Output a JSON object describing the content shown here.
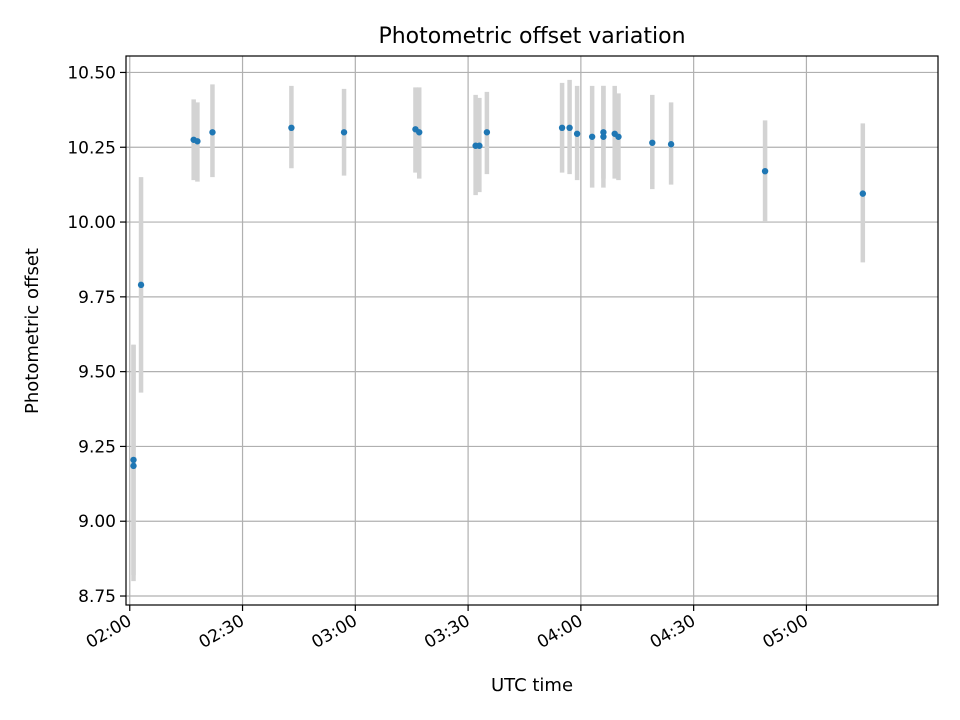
{
  "chart_data": {
    "type": "scatter",
    "title": "Photometric offset variation",
    "xlabel": "UTC time",
    "ylabel": "Photometric offset",
    "x_tick_labels": [
      "02:00",
      "02:30",
      "03:00",
      "03:30",
      "04:00",
      "04:30",
      "05:00"
    ],
    "y_tick_labels": [
      "8.75",
      "9.00",
      "9.25",
      "9.50",
      "9.75",
      "10.00",
      "10.25",
      "10.50"
    ],
    "x_ticks": [
      "02:00",
      "02:30",
      "03:00",
      "03:30",
      "04:00",
      "04:30",
      "05:00"
    ],
    "y_ticks": [
      8.75,
      9.0,
      9.25,
      9.5,
      9.75,
      10.0,
      10.25,
      10.5
    ],
    "xlim": [
      "01:59",
      "05:35"
    ],
    "ylim": [
      8.72,
      10.555
    ],
    "grid": true,
    "colors": {
      "marker": "#1f77b4",
      "errorbar": "#d3d3d3",
      "grid": "#b0b0b0"
    },
    "points": [
      {
        "time": "02:01",
        "y": 9.185,
        "lo": 8.8,
        "hi": 9.59
      },
      {
        "time": "02:01",
        "y": 9.205,
        "lo": 8.82,
        "hi": 9.59
      },
      {
        "time": "02:03",
        "y": 9.79,
        "lo": 9.43,
        "hi": 10.15
      },
      {
        "time": "02:17",
        "y": 10.275,
        "lo": 10.14,
        "hi": 10.41
      },
      {
        "time": "02:18",
        "y": 10.27,
        "lo": 10.135,
        "hi": 10.4
      },
      {
        "time": "02:22",
        "y": 10.3,
        "lo": 10.15,
        "hi": 10.46
      },
      {
        "time": "02:43",
        "y": 10.315,
        "lo": 10.18,
        "hi": 10.455
      },
      {
        "time": "02:57",
        "y": 10.3,
        "lo": 10.155,
        "hi": 10.445
      },
      {
        "time": "03:16",
        "y": 10.31,
        "lo": 10.165,
        "hi": 10.45
      },
      {
        "time": "03:17",
        "y": 10.3,
        "lo": 10.145,
        "hi": 10.45
      },
      {
        "time": "03:32",
        "y": 10.255,
        "lo": 10.09,
        "hi": 10.425
      },
      {
        "time": "03:33",
        "y": 10.255,
        "lo": 10.1,
        "hi": 10.415
      },
      {
        "time": "03:35",
        "y": 10.3,
        "lo": 10.16,
        "hi": 10.435
      },
      {
        "time": "03:55",
        "y": 10.315,
        "lo": 10.165,
        "hi": 10.465
      },
      {
        "time": "03:57",
        "y": 10.315,
        "lo": 10.16,
        "hi": 10.475
      },
      {
        "time": "03:59",
        "y": 10.295,
        "lo": 10.14,
        "hi": 10.455
      },
      {
        "time": "04:03",
        "y": 10.285,
        "lo": 10.115,
        "hi": 10.455
      },
      {
        "time": "04:06",
        "y": 10.3,
        "lo": 10.145,
        "hi": 10.455
      },
      {
        "time": "04:06",
        "y": 10.285,
        "lo": 10.115,
        "hi": 10.455
      },
      {
        "time": "04:09",
        "y": 10.295,
        "lo": 10.145,
        "hi": 10.455
      },
      {
        "time": "04:10",
        "y": 10.285,
        "lo": 10.14,
        "hi": 10.43
      },
      {
        "time": "04:19",
        "y": 10.265,
        "lo": 10.11,
        "hi": 10.425
      },
      {
        "time": "04:24",
        "y": 10.26,
        "lo": 10.125,
        "hi": 10.4
      },
      {
        "time": "04:49",
        "y": 10.17,
        "lo": 10.0,
        "hi": 10.34
      },
      {
        "time": "05:15",
        "y": 10.095,
        "lo": 9.865,
        "hi": 10.33
      }
    ]
  }
}
